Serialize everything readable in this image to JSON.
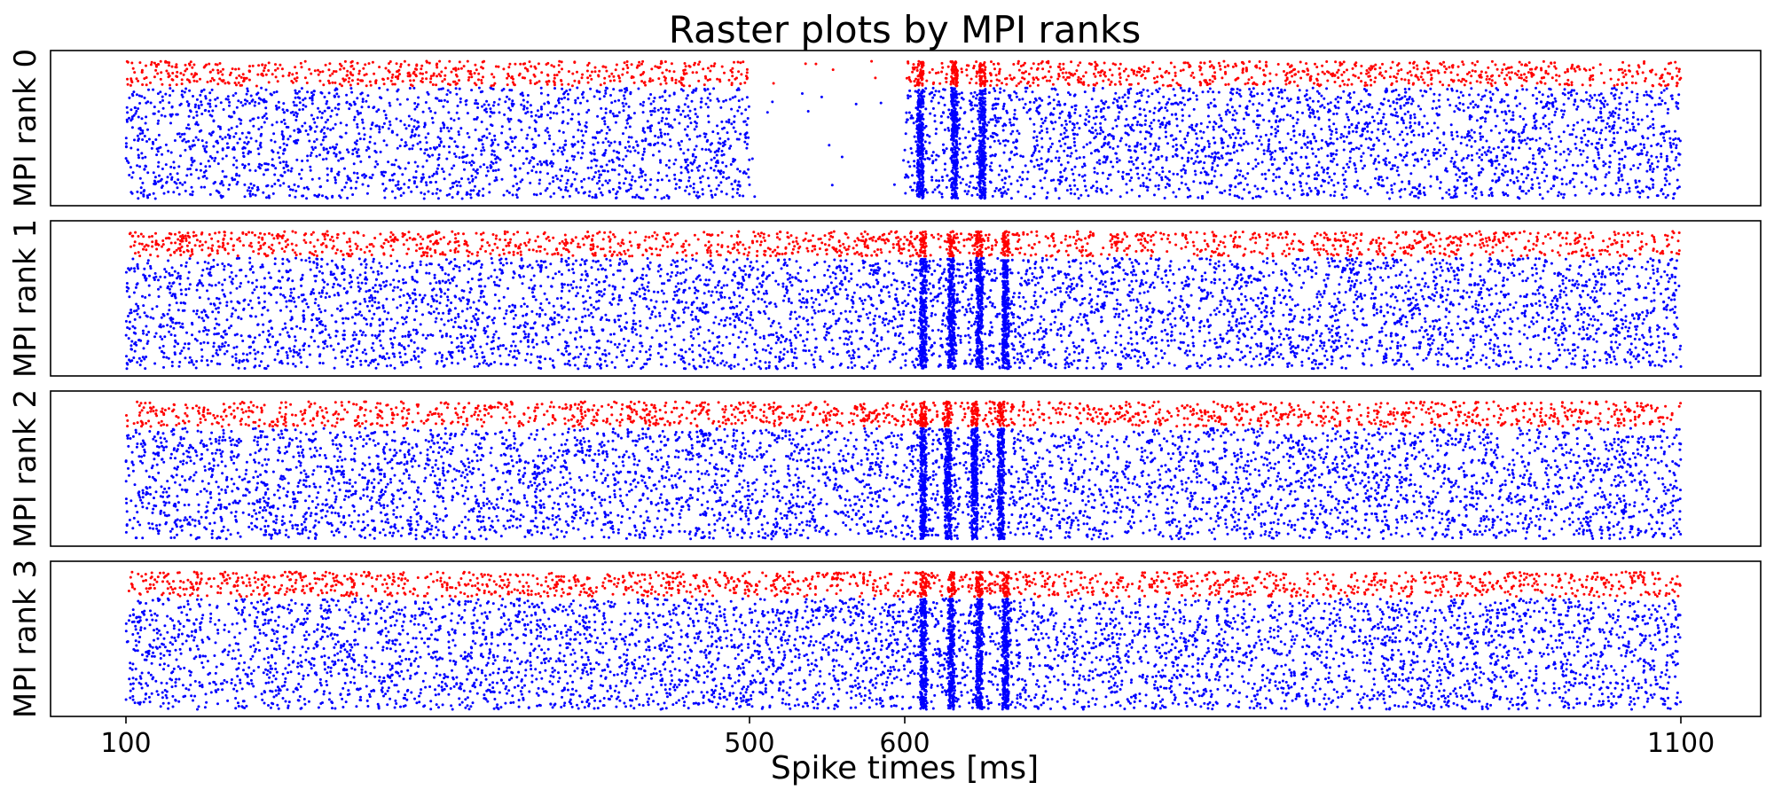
{
  "chart_data": {
    "type": "scatter",
    "title": "Raster plots by MPI ranks",
    "xlabel": "Spike times [ms]",
    "xlim": [
      20,
      1150
    ],
    "xticks": [
      100,
      500,
      600,
      1100
    ],
    "x_scale": "piecewise",
    "x_range": [
      100,
      1100
    ],
    "grid": false,
    "legend": "none",
    "colors": {
      "excitatory": "#0000ff",
      "inhibitory": "#ff0000",
      "frame": "#000000"
    },
    "panels": [
      {
        "ylabel": "MPI rank 0",
        "gap": [
          500,
          600
        ],
        "sync_bursts": [
          610,
          632,
          650
        ]
      },
      {
        "ylabel": "MPI rank 1",
        "gap": null,
        "sync_bursts": [
          612,
          630,
          648,
          665
        ]
      },
      {
        "ylabel": "MPI rank 2",
        "gap": null,
        "sync_bursts": [
          612,
          628,
          645,
          662
        ]
      },
      {
        "ylabel": "MPI rank 3",
        "gap": null,
        "sync_bursts": [
          612,
          630,
          648,
          665
        ]
      }
    ],
    "series": [
      {
        "population": "excitatory",
        "marker": "dot",
        "fraction_of_rows": 0.8
      },
      {
        "population": "inhibitory",
        "marker": "dot",
        "fraction_of_rows": 0.2
      }
    ]
  }
}
